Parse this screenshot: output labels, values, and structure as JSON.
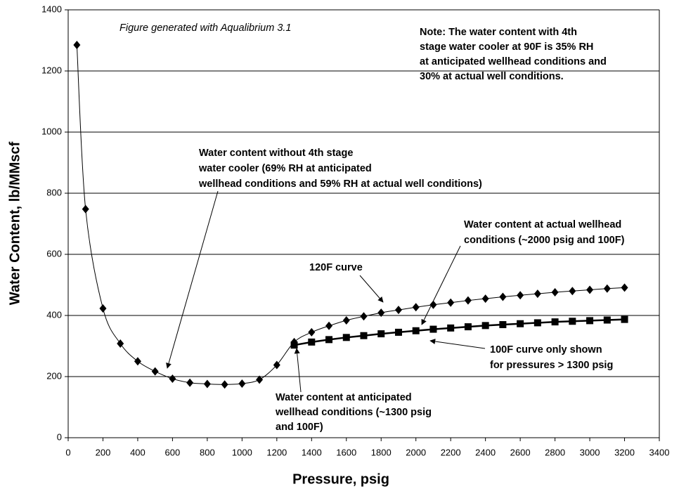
{
  "chart_data": {
    "type": "line",
    "y_label": "Water Content, lb/MMscf",
    "x_label": "Pressure, psig",
    "xlim": [
      0,
      3400
    ],
    "xticks": [
      0,
      200,
      400,
      600,
      800,
      1000,
      1200,
      1400,
      1600,
      1800,
      2000,
      2200,
      2400,
      2600,
      2800,
      3000,
      3200,
      3400
    ],
    "ylim": [
      0,
      1400
    ],
    "yticks": [
      0,
      200,
      400,
      600,
      800,
      1000,
      1200,
      1400
    ],
    "grid": true,
    "series": [
      {
        "color": "#000000",
        "marker": "diamond",
        "smooth": true,
        "x": [
          50,
          100,
          200,
          300,
          400,
          500,
          600,
          700,
          800,
          900,
          1000,
          1100,
          1200,
          1300,
          1400,
          1500,
          1600,
          1700,
          1800,
          1900,
          2000,
          2100,
          2200,
          2300,
          2400,
          2500,
          2600,
          2700,
          2800,
          2900,
          3000,
          3100,
          3200
        ],
        "values": [
          1285,
          748,
          423,
          308,
          250,
          217,
          193,
          180,
          176,
          174,
          177,
          190,
          238,
          313,
          345,
          366,
          384,
          397,
          409,
          418,
          427,
          435,
          442,
          449,
          455,
          461,
          466,
          471,
          476,
          480,
          484,
          488,
          491
        ]
      },
      {
        "color": "#000000",
        "marker": "square",
        "smooth": false,
        "x": [
          1300,
          1400,
          1500,
          1600,
          1700,
          1800,
          1900,
          2000,
          2100,
          2200,
          2300,
          2400,
          2500,
          2600,
          2700,
          2800,
          2900,
          3000,
          3100,
          3200
        ],
        "values": [
          303,
          313,
          321,
          328,
          334,
          340,
          345,
          350,
          355,
          359,
          363,
          367,
          370,
          373,
          376,
          379,
          381,
          383,
          385,
          387
        ]
      }
    ],
    "annotations": [
      {
        "lines": [
          "Figure generated with Aqualibrium 3.1"
        ]
      },
      {
        "lines": [
          "Note:  The water content with 4th",
          "stage water cooler  at 90F is 35% RH",
          "at anticipated wellhead conditions and",
          "30% at actual well conditions."
        ]
      },
      {
        "lines": [
          "Water content without 4th stage",
          "water cooler (69% RH at anticipated",
          "wellhead conditions and 59% RH at actual well conditions)"
        ]
      },
      {
        "lines": [
          "Water content at actual wellhead",
          "conditions (~2000 psig and 100F)"
        ]
      },
      {
        "lines": [
          "120F curve"
        ]
      },
      {
        "lines": [
          "100F curve only shown",
          "for pressures > 1300 psig"
        ]
      },
      {
        "lines": [
          "Water content at anticipated",
          "wellhead conditions (~1300 psig",
          " and 100F)"
        ]
      }
    ]
  }
}
